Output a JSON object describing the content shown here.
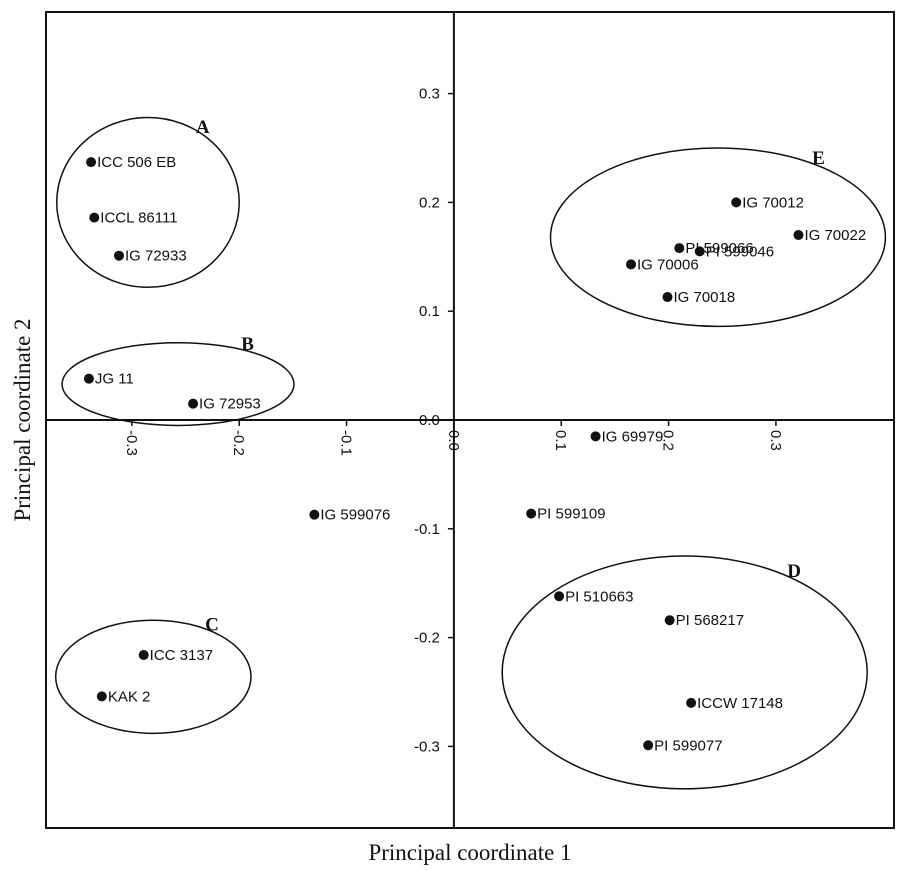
{
  "chart_data": {
    "type": "scatter",
    "title": "",
    "xlabel": "Principal coordinate 1",
    "ylabel": "Principal coordinate 2",
    "xlim": [
      -0.38,
      0.41
    ],
    "ylim": [
      -0.375,
      0.375
    ],
    "grid": false,
    "x_ticks": [
      -0.3,
      -0.2,
      -0.1,
      0.0,
      0.1,
      0.2,
      0.3
    ],
    "x_tick_labels": [
      "-0.3",
      "-0.2",
      "-0.1",
      "0.0",
      "0.1",
      "0.2",
      "0.3"
    ],
    "y_ticks": [
      0.3,
      0.2,
      0.1,
      0.0,
      -0.1,
      -0.2,
      -0.3
    ],
    "y_tick_labels": [
      "0.3",
      "0.2",
      "0.1",
      "0.0",
      "-0.1",
      "-0.2",
      "-0.3"
    ],
    "points": [
      {
        "label": "ICC 506 EB",
        "x": -0.338,
        "y": 0.237
      },
      {
        "label": "ICCL 86111",
        "x": -0.335,
        "y": 0.186
      },
      {
        "label": "IG 72933",
        "x": -0.312,
        "y": 0.151
      },
      {
        "label": "JG 11",
        "x": -0.34,
        "y": 0.038
      },
      {
        "label": "IG 72953",
        "x": -0.243,
        "y": 0.015
      },
      {
        "label": "IG 599076",
        "x": -0.13,
        "y": -0.087
      },
      {
        "label": "ICC 3137",
        "x": -0.289,
        "y": -0.216
      },
      {
        "label": "KAK 2",
        "x": -0.328,
        "y": -0.254
      },
      {
        "label": "IG 69979",
        "x": 0.132,
        "y": -0.015
      },
      {
        "label": "PI 599109",
        "x": 0.072,
        "y": -0.086
      },
      {
        "label": "PI 510663",
        "x": 0.098,
        "y": -0.162
      },
      {
        "label": "PI 568217",
        "x": 0.201,
        "y": -0.184
      },
      {
        "label": "ICCW 17148",
        "x": 0.221,
        "y": -0.26
      },
      {
        "label": "PI 599077",
        "x": 0.181,
        "y": -0.299
      },
      {
        "label": "IG 70012",
        "x": 0.263,
        "y": 0.2
      },
      {
        "label": "IG 70022",
        "x": 0.321,
        "y": 0.17
      },
      {
        "label": "PI 599066",
        "x": 0.21,
        "y": 0.158
      },
      {
        "label": "PI 599046",
        "x": 0.229,
        "y": 0.155
      },
      {
        "label": "IG 70006",
        "x": 0.165,
        "y": 0.143
      },
      {
        "label": "IG 70018",
        "x": 0.199,
        "y": 0.113
      }
    ],
    "groups": [
      {
        "label": "A",
        "center": [
          -0.285,
          0.2
        ],
        "radius": [
          0.085,
          0.078
        ]
      },
      {
        "label": "B",
        "center": [
          -0.257,
          0.033
        ],
        "radius": [
          0.108,
          0.038
        ]
      },
      {
        "label": "C",
        "center": [
          -0.28,
          -0.236
        ],
        "radius": [
          0.091,
          0.052
        ]
      },
      {
        "label": "D",
        "center": [
          0.215,
          -0.232
        ],
        "radius": [
          0.17,
          0.107
        ]
      },
      {
        "label": "E",
        "center": [
          0.246,
          0.168
        ],
        "radius": [
          0.156,
          0.082
        ]
      }
    ]
  }
}
